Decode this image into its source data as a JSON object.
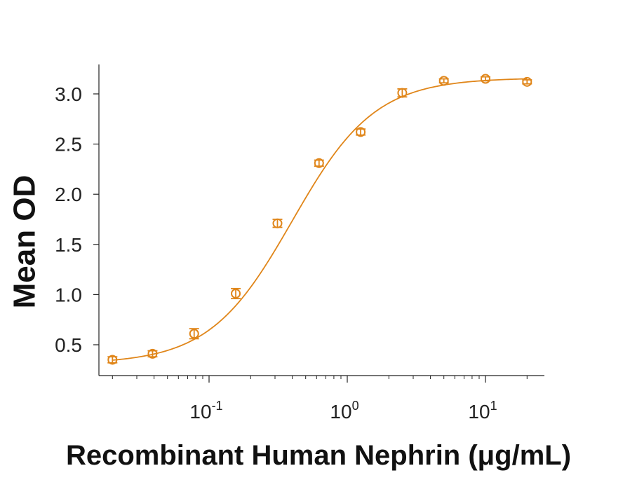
{
  "chart_data": {
    "type": "scatter",
    "title": "",
    "xlabel": "Recombinant Human Nephrin (μg/mL)",
    "ylabel": "Mean OD",
    "x_scale": "log",
    "x_range": [
      0.015,
      25
    ],
    "y_range": [
      0.2,
      3.3
    ],
    "y_ticks": [
      0.5,
      1.0,
      1.5,
      2.0,
      2.5,
      3.0
    ],
    "y_tick_labels": [
      "0.5",
      "1.0",
      "1.5",
      "2.0",
      "2.5",
      "3.0"
    ],
    "x_ticks": [
      {
        "value": 0.1,
        "base": "10",
        "exp": "-1"
      },
      {
        "value": 1,
        "base": "10",
        "exp": "0"
      },
      {
        "value": 10,
        "base": "10",
        "exp": "1"
      }
    ],
    "grid": false,
    "legend": "none",
    "color": "#E0861A",
    "series": [
      {
        "x": [
          0.02,
          0.039,
          0.078,
          0.156,
          0.3125,
          0.625,
          1.25,
          2.5,
          5,
          10,
          20
        ],
        "y": [
          0.35,
          0.41,
          0.61,
          1.01,
          1.71,
          2.31,
          2.62,
          3.01,
          3.13,
          3.15,
          3.12
        ],
        "error": [
          0.03,
          0.03,
          0.05,
          0.05,
          0.04,
          0.03,
          0.03,
          0.04,
          0.02,
          0.02,
          0.02
        ]
      }
    ],
    "fit": {
      "model": "4PL",
      "bottom": 0.31,
      "top": 3.16,
      "ec50": 0.4,
      "hill": 1.45,
      "x_range": [
        0.02,
        20
      ]
    }
  }
}
